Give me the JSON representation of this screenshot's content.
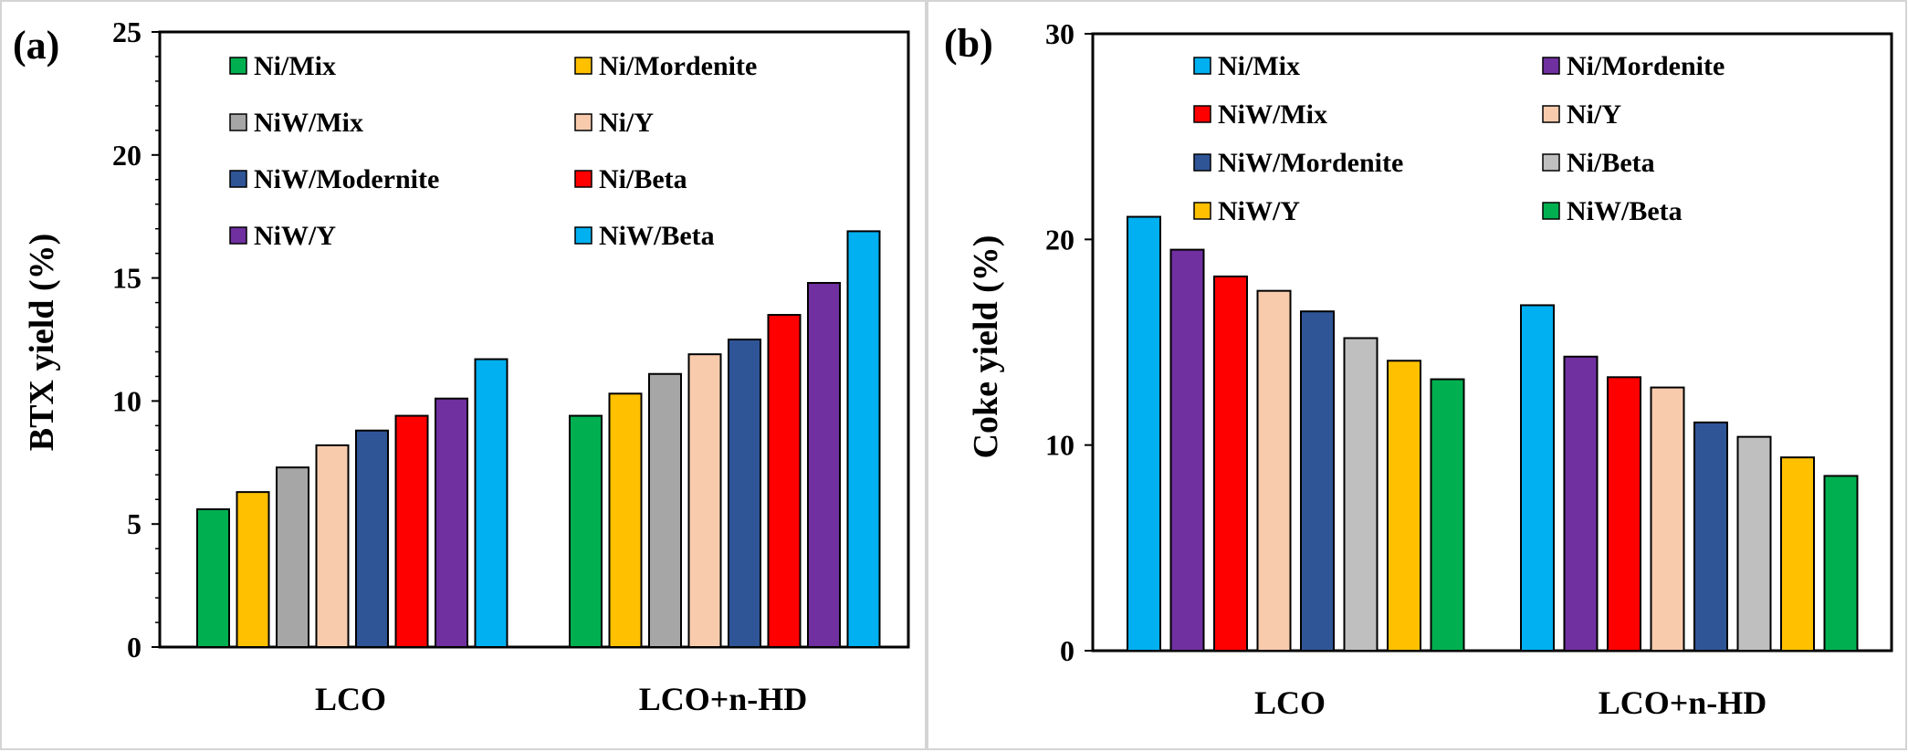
{
  "colors": {
    "green": "#00b050",
    "gold": "#ffc000",
    "gray": "#a6a6a6",
    "peach": "#f8cbad",
    "navy": "#2f5597",
    "red": "#ff0000",
    "purple": "#7030a0",
    "sky": "#00b0f0",
    "lightgray": "#bfbfbf"
  },
  "chart_data": [
    {
      "type": "bar",
      "panel_label": "(a)",
      "ylabel": "BTX yield (%)",
      "xlabel": "",
      "ylim": [
        0,
        25
      ],
      "y_ticks": [
        "0",
        "5",
        "10",
        "15",
        "20",
        "25"
      ],
      "categories": [
        "LCO",
        "LCO+n-HD"
      ],
      "legend_position": "top",
      "series": [
        {
          "name": "Ni/Mix",
          "color": "#00b050",
          "values": [
            5.6,
            9.4
          ]
        },
        {
          "name": "Ni/Mordenite",
          "color": "#ffc000",
          "values": [
            6.3,
            10.3
          ]
        },
        {
          "name": "NiW/Mix",
          "color": "#a6a6a6",
          "values": [
            7.3,
            11.1
          ]
        },
        {
          "name": "Ni/Y",
          "color": "#f8cbad",
          "values": [
            8.2,
            11.9
          ]
        },
        {
          "name": "NiW/Modernite",
          "color": "#2f5597",
          "values": [
            8.8,
            12.5
          ]
        },
        {
          "name": "Ni/Beta",
          "color": "#ff0000",
          "values": [
            9.4,
            13.5
          ]
        },
        {
          "name": "NiW/Y",
          "color": "#7030a0",
          "values": [
            10.1,
            14.8
          ]
        },
        {
          "name": "NiW/Beta",
          "color": "#00b0f0",
          "values": [
            11.7,
            16.9
          ]
        }
      ]
    },
    {
      "type": "bar",
      "panel_label": "(b)",
      "ylabel": "Coke yield (%)",
      "xlabel": "",
      "ylim": [
        0,
        30
      ],
      "y_ticks": [
        "0",
        "10",
        "20",
        "30"
      ],
      "categories": [
        "LCO",
        "LCO+n-HD"
      ],
      "legend_position": "top",
      "series": [
        {
          "name": "Ni/Mix",
          "color": "#00b0f0",
          "values": [
            21.1,
            16.8
          ]
        },
        {
          "name": "Ni/Mordenite",
          "color": "#7030a0",
          "values": [
            19.5,
            14.3
          ]
        },
        {
          "name": "NiW/Mix",
          "color": "#ff0000",
          "values": [
            18.2,
            13.3
          ]
        },
        {
          "name": "Ni/Y",
          "color": "#f8cbad",
          "values": [
            17.5,
            12.8
          ]
        },
        {
          "name": "NiW/Mordenite",
          "color": "#2f5597",
          "values": [
            16.5,
            11.1
          ]
        },
        {
          "name": "Ni/Beta",
          "color": "#bfbfbf",
          "values": [
            15.2,
            10.4
          ]
        },
        {
          "name": "NiW/Y",
          "color": "#ffc000",
          "values": [
            14.1,
            9.4
          ]
        },
        {
          "name": "NiW/Beta",
          "color": "#00b050",
          "values": [
            13.2,
            8.5
          ]
        }
      ]
    }
  ]
}
